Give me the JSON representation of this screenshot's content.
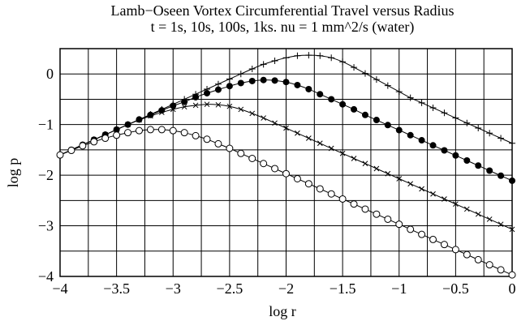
{
  "chart_data": {
    "type": "scatter",
    "title": "Lamb−Oseen Vortex Circumferential Travel versus Radius",
    "subtitle": "t = 1s, 10s, 100s, 1ks.  nu = 1 mm^2/s (water)",
    "xlabel": "log r",
    "ylabel": "log p",
    "xlim": [
      -4,
      0
    ],
    "ylim": [
      -4,
      0.5
    ],
    "grid": true,
    "x_ticks": [
      -4,
      -3.5,
      -3,
      -2.5,
      -2,
      -1.5,
      -1,
      -0.5,
      0
    ],
    "x_tick_labels": [
      "−4",
      "−3.5",
      "−3",
      "−2.5",
      "−2",
      "−1.5",
      "−1",
      "−0.5",
      "0"
    ],
    "y_ticks": [
      -4,
      -3,
      -2,
      -1,
      0
    ],
    "y_tick_labels": [
      "−4",
      "−3",
      "−2",
      "−1",
      "0"
    ],
    "marker_x": [
      -4.0,
      -3.9,
      -3.8,
      -3.7,
      -3.6,
      -3.5,
      -3.4,
      -3.3,
      -3.2,
      -3.1,
      -3.0,
      -2.9,
      -2.8,
      -2.7,
      -2.6,
      -2.5,
      -2.4,
      -2.3,
      -2.2,
      -2.1,
      -2.0,
      -1.9,
      -1.8,
      -1.7,
      -1.6,
      -1.5,
      -1.4,
      -1.3,
      -1.2,
      -1.1,
      -1.0,
      -0.9,
      -0.8,
      -0.7,
      -0.6,
      -0.5,
      -0.4,
      -0.3,
      -0.2,
      -0.1,
      0.0
    ],
    "series": [
      {
        "marker": "plus",
        "values": [
          -1.6,
          -1.5,
          -1.4,
          -1.3,
          -1.2,
          -1.1,
          -1.0,
          -0.9,
          -0.8,
          -0.7,
          -0.6,
          -0.5,
          -0.4,
          -0.3,
          -0.2,
          -0.1,
          0.0,
          0.1,
          0.19,
          0.26,
          0.32,
          0.36,
          0.37,
          0.36,
          0.32,
          0.24,
          0.13,
          0.01,
          -0.11,
          -0.23,
          -0.35,
          -0.47,
          -0.57,
          -0.67,
          -0.77,
          -0.87,
          -0.97,
          -1.07,
          -1.17,
          -1.27,
          -1.37
        ]
      },
      {
        "marker": "filled-circle",
        "values": [
          -1.6,
          -1.5,
          -1.4,
          -1.3,
          -1.2,
          -1.1,
          -1.0,
          -0.9,
          -0.81,
          -0.72,
          -0.63,
          -0.55,
          -0.46,
          -0.38,
          -0.31,
          -0.24,
          -0.18,
          -0.14,
          -0.12,
          -0.13,
          -0.16,
          -0.22,
          -0.3,
          -0.4,
          -0.5,
          -0.6,
          -0.7,
          -0.81,
          -0.91,
          -1.01,
          -1.11,
          -1.21,
          -1.31,
          -1.41,
          -1.51,
          -1.61,
          -1.71,
          -1.81,
          -1.91,
          -2.01,
          -2.11
        ]
      },
      {
        "marker": "cross",
        "values": [
          -1.6,
          -1.5,
          -1.4,
          -1.3,
          -1.2,
          -1.1,
          -1.0,
          -0.91,
          -0.83,
          -0.76,
          -0.7,
          -0.65,
          -0.62,
          -0.6,
          -0.61,
          -0.64,
          -0.7,
          -0.78,
          -0.87,
          -0.97,
          -1.07,
          -1.17,
          -1.27,
          -1.37,
          -1.47,
          -1.57,
          -1.67,
          -1.77,
          -1.87,
          -1.97,
          -2.07,
          -2.17,
          -2.27,
          -2.37,
          -2.47,
          -2.57,
          -2.67,
          -2.77,
          -2.87,
          -2.97,
          -3.07
        ]
      },
      {
        "marker": "open-circle",
        "values": [
          -1.6,
          -1.51,
          -1.42,
          -1.34,
          -1.27,
          -1.21,
          -1.16,
          -1.12,
          -1.1,
          -1.1,
          -1.12,
          -1.16,
          -1.22,
          -1.29,
          -1.38,
          -1.47,
          -1.57,
          -1.67,
          -1.77,
          -1.87,
          -1.97,
          -2.07,
          -2.17,
          -2.27,
          -2.37,
          -2.47,
          -2.57,
          -2.67,
          -2.77,
          -2.87,
          -2.97,
          -3.07,
          -3.17,
          -3.27,
          -3.37,
          -3.47,
          -3.57,
          -3.67,
          -3.77,
          -3.87,
          -3.97
        ]
      }
    ]
  }
}
